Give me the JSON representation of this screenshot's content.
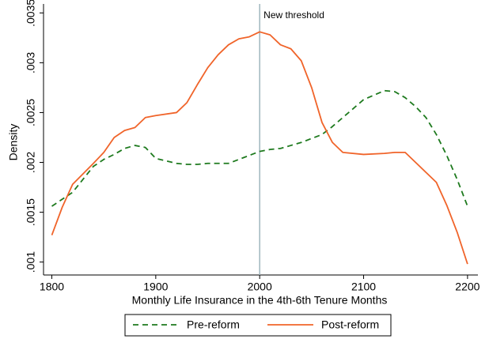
{
  "chart_data": {
    "type": "line",
    "xlabel": "Monthly Life Insurance in the 4th-6th Tenure Months",
    "ylabel": "Density",
    "x": [
      1800,
      1810,
      1820,
      1840,
      1850,
      1860,
      1870,
      1880,
      1890,
      1900,
      1920,
      1930,
      1940,
      1950,
      1960,
      1970,
      1980,
      1990,
      2000,
      2010,
      2020,
      2030,
      2040,
      2050,
      2060,
      2070,
      2080,
      2100,
      2120,
      2130,
      2140,
      2150,
      2160,
      2170,
      2180,
      2190,
      2200
    ],
    "series": [
      {
        "name": "Pre-reform",
        "color": "#1e7a1e",
        "dashed": true,
        "values": [
          0.00156,
          0.00163,
          0.0017,
          0.00196,
          0.00203,
          0.00208,
          0.00214,
          0.00217,
          0.00215,
          0.00204,
          0.00199,
          0.00198,
          0.00198,
          0.00199,
          0.00199,
          0.00199,
          0.00203,
          0.00207,
          0.00211,
          0.00213,
          0.00214,
          0.00217,
          0.0022,
          0.00224,
          0.00228,
          0.00236,
          0.00245,
          0.00263,
          0.00272,
          0.00271,
          0.00265,
          0.00256,
          0.00245,
          0.00228,
          0.00207,
          0.00183,
          0.00156
        ]
      },
      {
        "name": "Post-reform",
        "color": "#f0642a",
        "dashed": false,
        "values": [
          0.00127,
          0.00155,
          0.00178,
          0.00199,
          0.0021,
          0.00225,
          0.00232,
          0.00235,
          0.00245,
          0.00247,
          0.0025,
          0.0026,
          0.00278,
          0.00295,
          0.00308,
          0.00318,
          0.00324,
          0.00326,
          0.00331,
          0.00328,
          0.00318,
          0.00314,
          0.00302,
          0.00275,
          0.0024,
          0.0022,
          0.0021,
          0.00208,
          0.00209,
          0.0021,
          0.0021,
          0.002,
          0.0019,
          0.0018,
          0.00157,
          0.0013,
          0.00098
        ]
      }
    ],
    "vline": {
      "x": 2000,
      "label": "New threshold",
      "color": "#9fb5bd",
      "label_color": "#e8202a"
    },
    "xlim": [
      1792,
      2210
    ],
    "xticks": [
      1800,
      1900,
      2000,
      2100,
      2200
    ],
    "ylim": [
      0.00087,
      0.00359
    ],
    "yticks": [
      {
        "value": 0.001,
        "label": ".001"
      },
      {
        "value": 0.0015,
        "label": ".0015"
      },
      {
        "value": 0.002,
        "label": ".002"
      },
      {
        "value": 0.0025,
        "label": ".0025"
      },
      {
        "value": 0.003,
        "label": ".003"
      },
      {
        "value": 0.0035,
        "label": ".0035"
      }
    ],
    "legend": "bottom"
  }
}
